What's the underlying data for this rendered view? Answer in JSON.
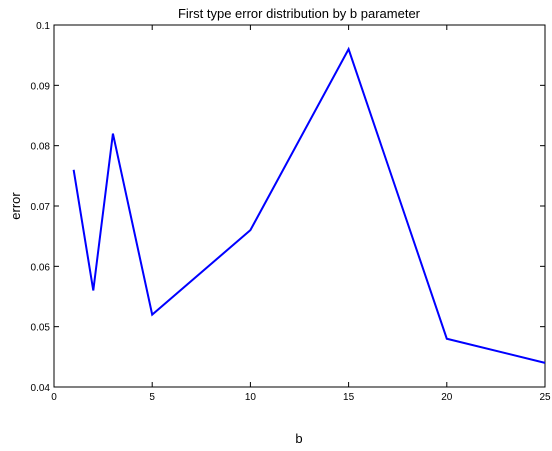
{
  "chart_data": {
    "type": "line",
    "title": "First type error distribution by b parameter",
    "xlabel": "b",
    "ylabel": "error",
    "xlim": [
      0,
      25
    ],
    "ylim": [
      0.04,
      0.1
    ],
    "xticks": [
      0,
      5,
      10,
      15,
      20,
      25
    ],
    "xtick_labels": [
      "0",
      "5",
      "10",
      "15",
      "20",
      "25"
    ],
    "yticks": [
      0.04,
      0.05,
      0.06,
      0.07,
      0.08,
      0.09,
      0.1
    ],
    "ytick_labels": [
      "0.04",
      "0.05",
      "0.06",
      "0.07",
      "0.08",
      "0.09",
      "0.1"
    ],
    "grid": false,
    "series": [
      {
        "color": "#0000ff",
        "x": [
          1,
          2,
          3,
          5,
          10,
          15,
          20,
          25
        ],
        "y": [
          0.076,
          0.056,
          0.082,
          0.052,
          0.066,
          0.096,
          0.048,
          0.044
        ]
      }
    ]
  }
}
